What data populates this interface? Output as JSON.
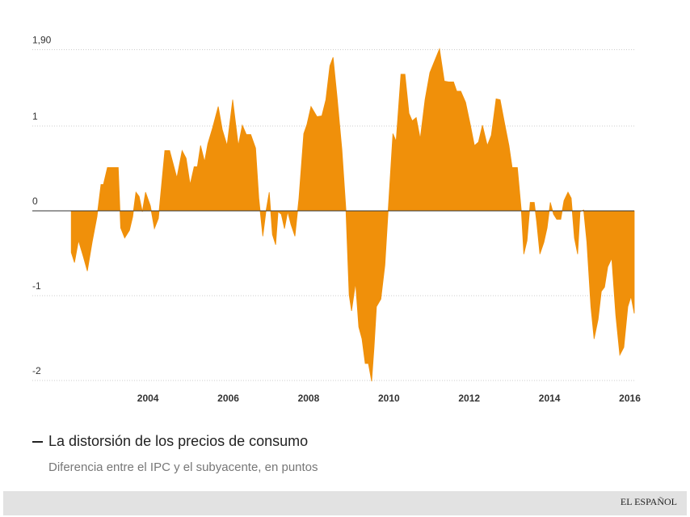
{
  "chart_data": {
    "type": "area",
    "title": "La distorsión de los precios de consumo",
    "subtitle": "Diferencia entre el IPC y el subyacente, en puntos",
    "brand": "EL ESPAÑOL",
    "color": "#f0900a",
    "grid": true,
    "xlim": [
      2001.12,
      2016.11
    ],
    "xticks": [
      2004,
      2006,
      2008,
      2010,
      2012,
      2014,
      2016
    ],
    "ylim": [
      -2.1,
      2.0
    ],
    "yticks": [
      -2,
      -1,
      0,
      1,
      {
        "value": 1.9,
        "label": "1,90"
      }
    ],
    "x": [
      2002.09,
      2002.17,
      2002.27,
      2002.39,
      2002.49,
      2002.61,
      2002.73,
      2002.83,
      2002.89,
      2002.99,
      2003.26,
      2003.32,
      2003.42,
      2003.54,
      2003.62,
      2003.7,
      2003.78,
      2003.86,
      2003.94,
      2004.06,
      2004.16,
      2004.26,
      2004.34,
      2004.42,
      2004.54,
      2004.72,
      2004.85,
      2004.95,
      2005.05,
      2005.15,
      2005.23,
      2005.31,
      2005.41,
      2005.49,
      2005.61,
      2005.75,
      2005.85,
      2005.97,
      2006.11,
      2006.25,
      2006.35,
      2006.45,
      2006.56,
      2006.68,
      2006.76,
      2006.86,
      2006.94,
      2007.02,
      2007.1,
      2007.18,
      2007.24,
      2007.32,
      2007.4,
      2007.48,
      2007.56,
      2007.66,
      2007.76,
      2007.88,
      2007.96,
      2008.06,
      2008.21,
      2008.33,
      2008.43,
      2008.53,
      2008.61,
      2008.71,
      2008.83,
      2008.93,
      2009.01,
      2009.07,
      2009.17,
      2009.25,
      2009.33,
      2009.41,
      2009.49,
      2009.57,
      2009.63,
      2009.69,
      2009.8,
      2009.9,
      2009.98,
      2010.1,
      2010.18,
      2010.3,
      2010.4,
      2010.5,
      2010.58,
      2010.68,
      2010.78,
      2010.9,
      2011.02,
      2011.14,
      2011.26,
      2011.38,
      2011.49,
      2011.61,
      2011.69,
      2011.79,
      2011.91,
      2012.03,
      2012.13,
      2012.23,
      2012.33,
      2012.45,
      2012.55,
      2012.67,
      2012.77,
      2012.89,
      2012.99,
      2013.07,
      2013.2,
      2013.3,
      2013.36,
      2013.44,
      2013.52,
      2013.62,
      2013.68,
      2013.76,
      2013.86,
      2013.94,
      2014.02,
      2014.1,
      2014.18,
      2014.28,
      2014.36,
      2014.46,
      2014.54,
      2014.62,
      2014.7,
      2014.76,
      2014.85,
      2014.93,
      2015.03,
      2015.11,
      2015.21,
      2015.29,
      2015.37,
      2015.45,
      2015.55,
      2015.65,
      2015.75,
      2015.85,
      2015.95,
      2016.03,
      2016.11
    ],
    "values": [
      -0.49,
      -0.61,
      -0.35,
      -0.54,
      -0.71,
      -0.37,
      -0.07,
      0.31,
      0.31,
      0.51,
      0.51,
      -0.2,
      -0.32,
      -0.23,
      -0.07,
      0.22,
      0.17,
      -0.01,
      0.22,
      0.06,
      -0.21,
      -0.09,
      0.31,
      0.71,
      0.71,
      0.39,
      0.71,
      0.62,
      0.31,
      0.52,
      0.52,
      0.77,
      0.58,
      0.79,
      0.98,
      1.23,
      0.96,
      0.77,
      1.31,
      0.77,
      1.01,
      0.9,
      0.9,
      0.74,
      0.15,
      -0.3,
      0,
      0.22,
      -0.28,
      -0.4,
      -0.01,
      -0.04,
      -0.21,
      -0.01,
      -0.16,
      -0.3,
      0.15,
      0.91,
      1.02,
      1.23,
      1.11,
      1.12,
      1.31,
      1.71,
      1.81,
      1.34,
      0.72,
      0.01,
      -0.99,
      -1.18,
      -0.85,
      -1.37,
      -1.51,
      -1.8,
      -1.8,
      -2.01,
      -1.61,
      -1.13,
      -1.04,
      -0.64,
      -0.01,
      0.91,
      0.82,
      1.61,
      1.61,
      1.15,
      1.06,
      1.1,
      0.85,
      1.31,
      1.63,
      1.77,
      1.91,
      1.53,
      1.52,
      1.52,
      1.41,
      1.41,
      1.28,
      1.01,
      0.77,
      0.81,
      1.01,
      0.77,
      0.89,
      1.32,
      1.31,
      1.01,
      0.77,
      0.51,
      0.51,
      -0.01,
      -0.51,
      -0.35,
      0.1,
      0.1,
      -0.13,
      -0.51,
      -0.37,
      -0.2,
      0.1,
      -0.04,
      -0.1,
      -0.1,
      0.12,
      0.22,
      0.15,
      -0.32,
      -0.51,
      -0.01,
      0.01,
      -0.37,
      -1.13,
      -1.51,
      -1.28,
      -0.95,
      -0.9,
      -0.66,
      -0.56,
      -1.23,
      -1.7,
      -1.61,
      -1.13,
      -1.01,
      -1.21
    ]
  }
}
